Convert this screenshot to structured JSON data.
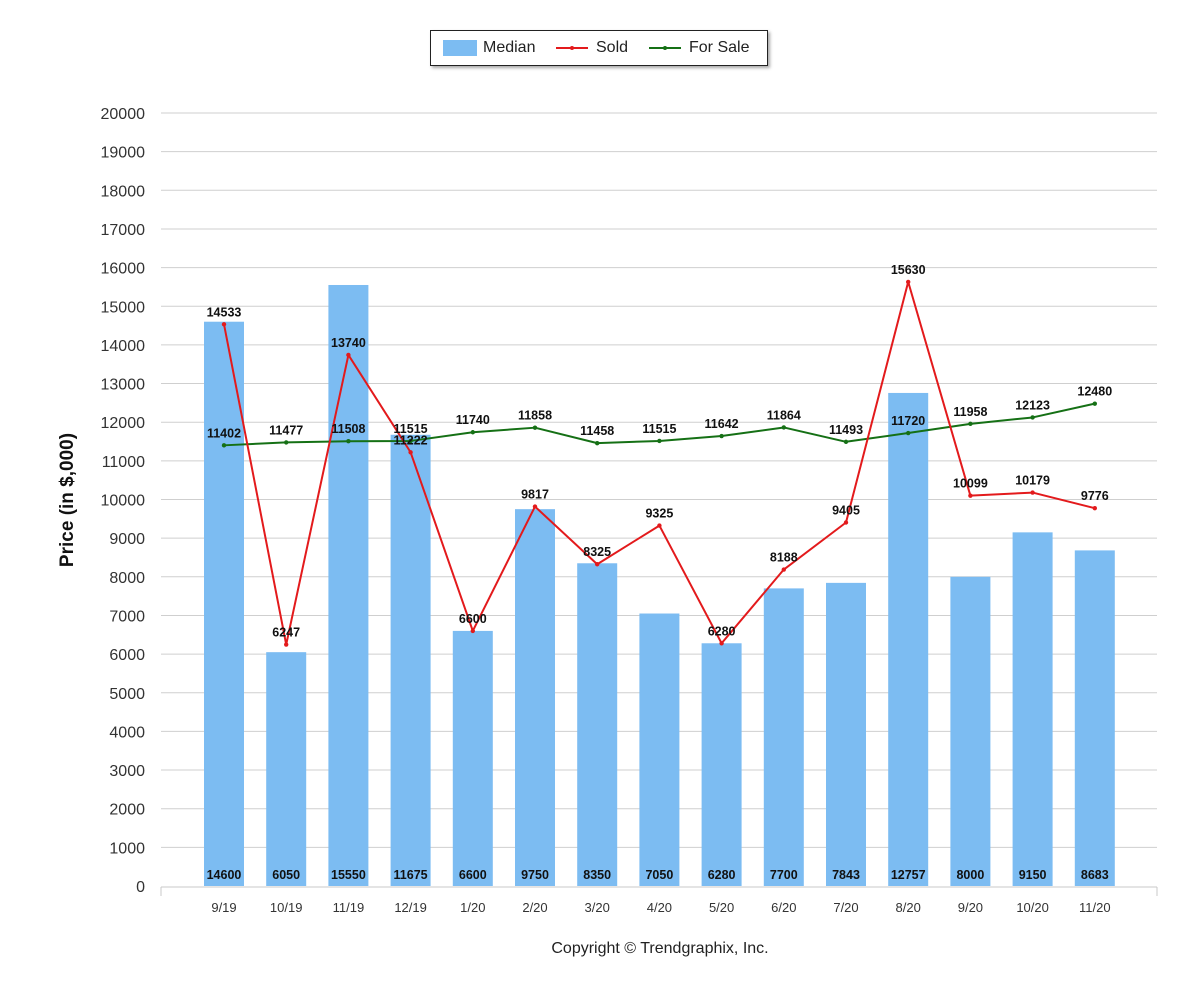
{
  "chart_data": {
    "type": "bar",
    "title": "",
    "xlabel": "",
    "ylabel": "Price (in $,000)",
    "ylim": [
      0,
      20000
    ],
    "yticks": [
      0,
      1000,
      2000,
      3000,
      4000,
      5000,
      6000,
      7000,
      8000,
      9000,
      10000,
      11000,
      12000,
      13000,
      14000,
      15000,
      16000,
      17000,
      18000,
      19000,
      20000
    ],
    "grid": true,
    "legend_position": "top-center",
    "categories": [
      "9/19",
      "10/19",
      "11/19",
      "12/19",
      "1/20",
      "2/20",
      "3/20",
      "4/20",
      "5/20",
      "6/20",
      "7/20",
      "8/20",
      "9/20",
      "10/20",
      "11/20"
    ],
    "series": [
      {
        "name": "Median",
        "kind": "bar",
        "color": "#7CBCF2",
        "values": [
          14600,
          6050,
          15550,
          11675,
          6600,
          9750,
          8350,
          7050,
          6280,
          7700,
          7843,
          12757,
          8000,
          9150,
          8683
        ]
      },
      {
        "name": "Sold",
        "kind": "line",
        "color": "#E31A1C",
        "values": [
          14533,
          6247,
          13740,
          11222,
          6600,
          9817,
          8325,
          9325,
          6280,
          8188,
          9405,
          15630,
          10099,
          10179,
          9776
        ]
      },
      {
        "name": "For Sale",
        "kind": "line",
        "color": "#157015",
        "values": [
          11402,
          11477,
          11508,
          11515,
          11740,
          11858,
          11458,
          11515,
          11642,
          11864,
          11493,
          11720,
          11958,
          12123,
          12480
        ]
      }
    ]
  },
  "copyright": "Copyright © Trendgraphix, Inc."
}
